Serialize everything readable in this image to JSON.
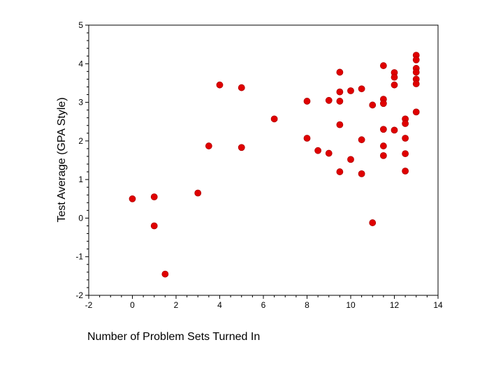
{
  "chart_data": {
    "type": "scatter",
    "title": "",
    "xlabel": "Number of Problem Sets Turned In",
    "ylabel": "Test Average (GPA Style)",
    "xlim": [
      -2,
      14
    ],
    "ylim": [
      -2,
      5
    ],
    "x_ticks": [
      "-2",
      "0",
      "2",
      "4",
      "6",
      "8",
      "10",
      "12",
      "14"
    ],
    "y_ticks": [
      "-2",
      "-1",
      "0",
      "1",
      "2",
      "3",
      "4",
      "5"
    ],
    "grid": false,
    "legend": "none",
    "marker_color": "#e00000",
    "points": [
      {
        "x": 0,
        "y": 0.5
      },
      {
        "x": 1,
        "y": 0.55
      },
      {
        "x": 1,
        "y": -0.2
      },
      {
        "x": 1.5,
        "y": -1.45
      },
      {
        "x": 3,
        "y": 0.65
      },
      {
        "x": 3.5,
        "y": 1.87
      },
      {
        "x": 4,
        "y": 3.45
      },
      {
        "x": 5,
        "y": 3.38
      },
      {
        "x": 5,
        "y": 1.83
      },
      {
        "x": 6.5,
        "y": 2.57
      },
      {
        "x": 8,
        "y": 3.03
      },
      {
        "x": 8,
        "y": 2.07
      },
      {
        "x": 8.5,
        "y": 1.75
      },
      {
        "x": 9,
        "y": 3.05
      },
      {
        "x": 9,
        "y": 1.68
      },
      {
        "x": 9.5,
        "y": 3.78
      },
      {
        "x": 9.5,
        "y": 3.27
      },
      {
        "x": 9.5,
        "y": 3.03
      },
      {
        "x": 9.5,
        "y": 2.42
      },
      {
        "x": 9.5,
        "y": 1.2
      },
      {
        "x": 10,
        "y": 3.3
      },
      {
        "x": 10,
        "y": 1.52
      },
      {
        "x": 10.5,
        "y": 3.35
      },
      {
        "x": 10.5,
        "y": 2.03
      },
      {
        "x": 10.5,
        "y": 1.15
      },
      {
        "x": 11,
        "y": 2.93
      },
      {
        "x": 11,
        "y": -0.12
      },
      {
        "x": 11.5,
        "y": 3.95
      },
      {
        "x": 11.5,
        "y": 3.08
      },
      {
        "x": 11.5,
        "y": 2.97
      },
      {
        "x": 11.5,
        "y": 2.3
      },
      {
        "x": 11.5,
        "y": 1.87
      },
      {
        "x": 11.5,
        "y": 1.62
      },
      {
        "x": 12,
        "y": 3.77
      },
      {
        "x": 12,
        "y": 3.65
      },
      {
        "x": 12,
        "y": 3.45
      },
      {
        "x": 12,
        "y": 2.28
      },
      {
        "x": 12.5,
        "y": 2.57
      },
      {
        "x": 12.5,
        "y": 2.45
      },
      {
        "x": 12.5,
        "y": 2.07
      },
      {
        "x": 12.5,
        "y": 1.67
      },
      {
        "x": 12.5,
        "y": 1.22
      },
      {
        "x": 13,
        "y": 4.22
      },
      {
        "x": 13,
        "y": 4.1
      },
      {
        "x": 13,
        "y": 3.88
      },
      {
        "x": 13,
        "y": 3.78
      },
      {
        "x": 13,
        "y": 3.6
      },
      {
        "x": 13,
        "y": 3.48
      },
      {
        "x": 13,
        "y": 2.75
      }
    ]
  }
}
